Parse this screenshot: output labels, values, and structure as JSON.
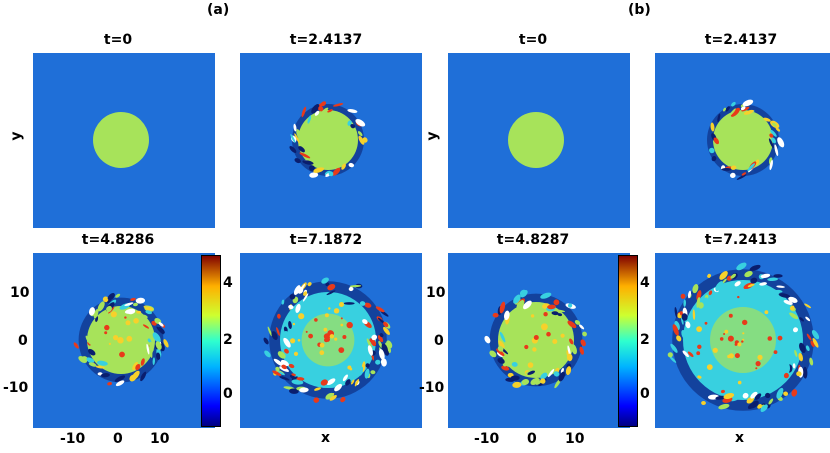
{
  "figure": {
    "groups": [
      {
        "label": "(a)",
        "panels": [
          {
            "title": "t=0",
            "state": "initial"
          },
          {
            "title": "t=2.4137",
            "state": "early"
          },
          {
            "title": "t=4.8286",
            "state": "mid"
          },
          {
            "title": "t=7.1872",
            "state": "late"
          }
        ],
        "colorbar_ticks": [
          "4",
          "2",
          "0"
        ]
      },
      {
        "label": "(b)",
        "panels": [
          {
            "title": "t=0",
            "state": "initial"
          },
          {
            "title": "t=2.4137",
            "state": "early"
          },
          {
            "title": "t=4.8287",
            "state": "mid"
          },
          {
            "title": "t=7.2413",
            "state": "late"
          }
        ],
        "colorbar_ticks": [
          "4",
          "2",
          "0"
        ]
      }
    ],
    "ylabel": "y",
    "xlabel": "x",
    "axis_ticks": [
      "-10",
      "0",
      "10"
    ],
    "y_axis_ticks": [
      "10",
      "0",
      "-10"
    ],
    "colors": {
      "background_field": "#1f6fd8",
      "core": "#a7e35a",
      "mix_hot": "#e83a1a",
      "mix_warm": "#f7d12b",
      "mix_cool": "#38d0e0",
      "dark": "#0a1e6e"
    },
    "colormap": "jet"
  }
}
